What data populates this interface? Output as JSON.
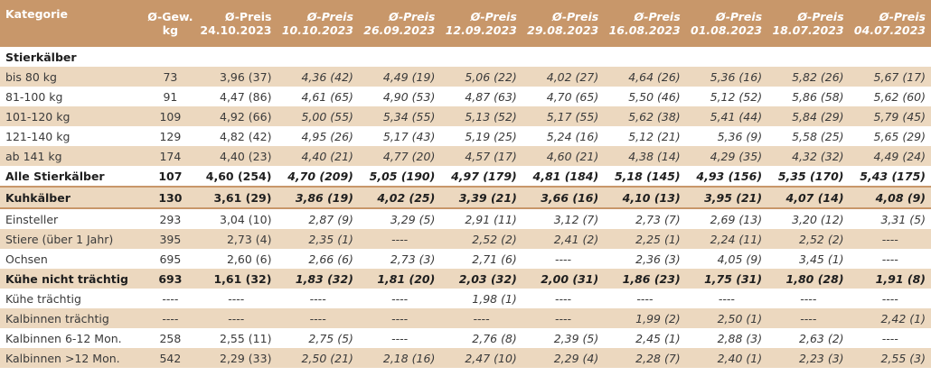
{
  "header": {
    "kategorie": "Kategorie",
    "gew_line1": "Ø-Gew.",
    "gew_line2": "kg",
    "preis_label": "Ø-Preis",
    "dates": [
      "24.10.2023",
      "10.10.2023",
      "26.09.2023",
      "12.09.2023",
      "29.08.2023",
      "16.08.2023",
      "01.08.2023",
      "18.07.2023",
      "04.07.2023"
    ]
  },
  "section_title": "Stierkälber",
  "rows": [
    {
      "label": "bis 80 kg",
      "gew": "73",
      "p": [
        "3,96 (37)",
        "4,36 (42)",
        "4,49 (19)",
        "5,06 (22)",
        "4,02 (27)",
        "4,64 (26)",
        "5,36 (16)",
        "5,82 (26)",
        "5,67 (17)"
      ]
    },
    {
      "label": "81-100 kg",
      "gew": "91",
      "p": [
        "4,47 (86)",
        "4,61 (65)",
        "4,90 (53)",
        "4,87 (63)",
        "4,70 (65)",
        "5,50 (46)",
        "5,12 (52)",
        "5,86 (58)",
        "5,62 (60)"
      ]
    },
    {
      "label": "101-120 kg",
      "gew": "109",
      "p": [
        "4,92 (66)",
        "5,00 (55)",
        "5,34 (55)",
        "5,13 (52)",
        "5,17 (55)",
        "5,62 (38)",
        "5,41 (44)",
        "5,84 (29)",
        "5,79 (45)"
      ]
    },
    {
      "label": "121-140 kg",
      "gew": "129",
      "p": [
        "4,82 (42)",
        "4,95 (26)",
        "5,17 (43)",
        "5,19 (25)",
        "5,24 (16)",
        "5,12 (21)",
        "5,36 (9)",
        "5,58 (25)",
        "5,65 (29)"
      ]
    },
    {
      "label": "ab 141 kg",
      "gew": "174",
      "p": [
        "4,40 (23)",
        "4,40 (21)",
        "4,77 (20)",
        "4,57 (17)",
        "4,60 (21)",
        "4,38 (14)",
        "4,29 (35)",
        "4,32 (32)",
        "4,49 (24)"
      ]
    },
    {
      "label": "Alle Stierkälber",
      "gew": "107",
      "p": [
        "4,60 (254)",
        "4,70 (209)",
        "5,05 (190)",
        "4,97 (179)",
        "4,81 (184)",
        "5,18 (145)",
        "4,93 (156)",
        "5,35 (170)",
        "5,43 (175)"
      ]
    },
    {
      "label": "Kuhkälber",
      "gew": "130",
      "p": [
        "3,61 (29)",
        "3,86 (19)",
        "4,02 (25)",
        "3,39 (21)",
        "3,66 (16)",
        "4,10 (13)",
        "3,95 (21)",
        "4,07 (14)",
        "4,08 (9)"
      ]
    },
    {
      "label": "Einsteller",
      "gew": "293",
      "p": [
        "3,04 (10)",
        "2,87 (9)",
        "3,29 (5)",
        "2,91 (11)",
        "3,12 (7)",
        "2,73 (7)",
        "2,69 (13)",
        "3,20 (12)",
        "3,31 (5)"
      ]
    },
    {
      "label": "Stiere (über 1 Jahr)",
      "gew": "395",
      "p": [
        "2,73 (4)",
        "2,35 (1)",
        "----",
        "2,52 (2)",
        "2,41 (2)",
        "2,25 (1)",
        "2,24 (11)",
        "2,52 (2)",
        "----"
      ]
    },
    {
      "label": "Ochsen",
      "gew": "695",
      "p": [
        "2,60 (6)",
        "2,66 (6)",
        "2,73 (3)",
        "2,71 (6)",
        "----",
        "2,36 (3)",
        "4,05 (9)",
        "3,45 (1)",
        "----"
      ]
    },
    {
      "label": "Kühe nicht trächtig",
      "gew": "693",
      "p": [
        "1,61 (32)",
        "1,83 (32)",
        "1,81 (20)",
        "2,03 (32)",
        "2,00 (31)",
        "1,86 (23)",
        "1,75 (31)",
        "1,80 (28)",
        "1,91 (8)"
      ]
    },
    {
      "label": "Kühe trächtig",
      "gew": "----",
      "p": [
        "----",
        "----",
        "----",
        "1,98 (1)",
        "----",
        "----",
        "----",
        "----",
        "----"
      ]
    },
    {
      "label": "Kalbinnen trächtig",
      "gew": "----",
      "p": [
        "----",
        "----",
        "----",
        "----",
        "----",
        "1,99 (2)",
        "2,50 (1)",
        "----",
        "2,42 (1)"
      ]
    },
    {
      "label": "Kalbinnen 6-12 Mon.",
      "gew": "258",
      "p": [
        "2,55 (11)",
        "2,75 (5)",
        "----",
        "2,76 (8)",
        "2,39 (5)",
        "2,45 (1)",
        "2,88 (3)",
        "2,63 (2)",
        "----"
      ]
    },
    {
      "label": "Kalbinnen >12 Mon.",
      "gew": "542",
      "p": [
        "2,29 (33)",
        "2,50 (21)",
        "2,18 (16)",
        "2,47 (10)",
        "2,29 (4)",
        "2,28 (7)",
        "2,40 (1)",
        "2,23 (3)",
        "2,55 (3)"
      ]
    }
  ]
}
